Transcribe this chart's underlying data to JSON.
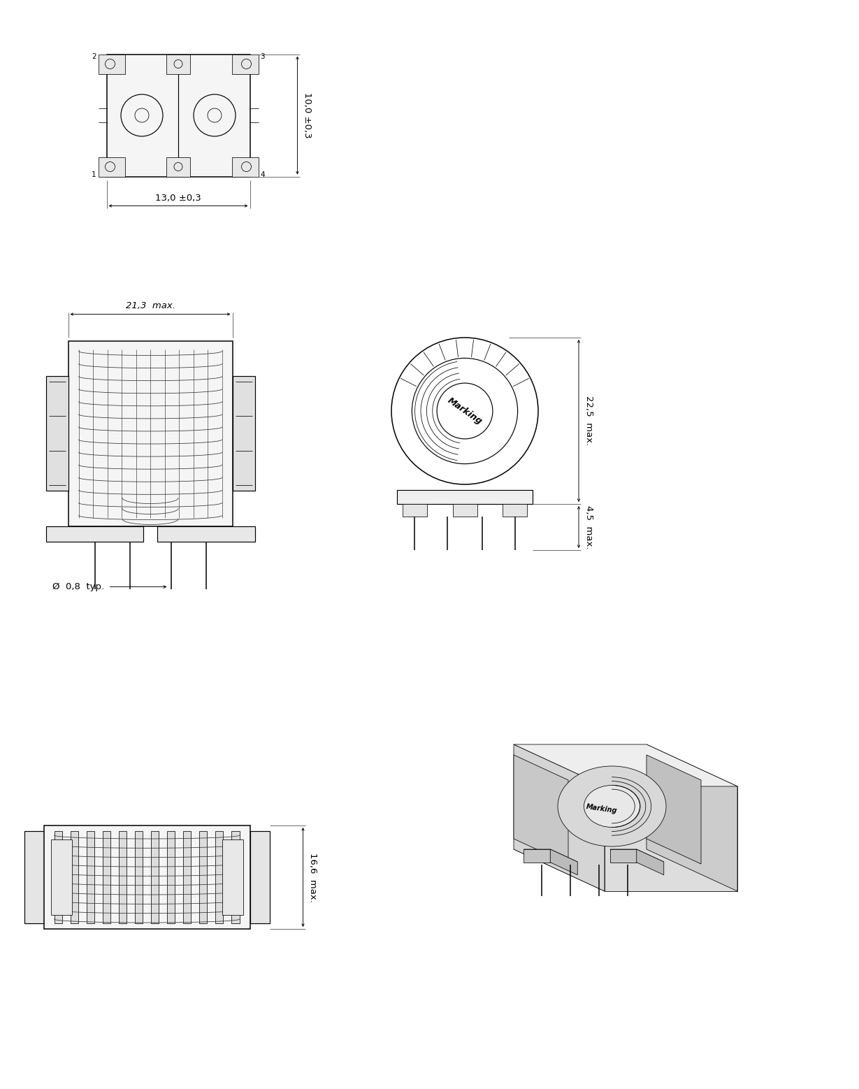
{
  "background_color": "#ffffff",
  "line_color": "#000000",
  "fig_width": 12.29,
  "fig_height": 15.58,
  "dims": {
    "top_width": "13,0 ±0,3",
    "top_height": "10,0 ±0,3",
    "front_width": "21,3  max.",
    "pin_dia": "Ø  0,8  typ.",
    "side_height": "22,5  max.",
    "side_pin": "4,5  max.",
    "bottom_height": "16,6  max."
  },
  "marking": "Marking",
  "font_size_dim": 9.5,
  "font_size_pin": 7.5,
  "lw_thin": 0.55,
  "lw_med": 0.85,
  "lw_thick": 1.1
}
